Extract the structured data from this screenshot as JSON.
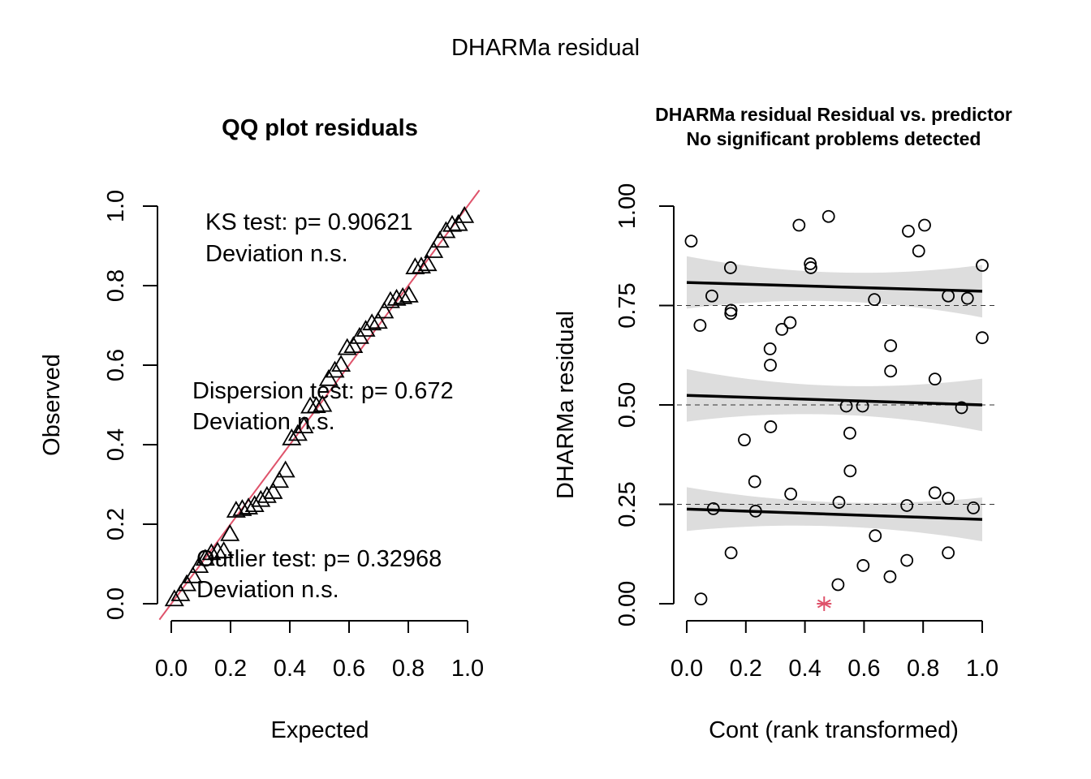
{
  "figure": {
    "main_title": "DHARMa residual"
  },
  "colors": {
    "ink": "#000000",
    "reference_line": "#DF536B",
    "outlier": "#DF536B",
    "ci_band": "#DDDDDD"
  },
  "chart_data": [
    {
      "type": "scatter",
      "title": "QQ plot residuals",
      "xlabel": "Expected",
      "ylabel": "Observed",
      "xlim": [
        0,
        1
      ],
      "ylim": [
        0,
        1
      ],
      "x_ticks": [
        "0.0",
        "0.2",
        "0.4",
        "0.6",
        "0.8",
        "1.0"
      ],
      "y_ticks": [
        "0.0",
        "0.2",
        "0.4",
        "0.6",
        "0.8",
        "1.0"
      ],
      "marker": "triangle",
      "reference_line": {
        "slope": 1,
        "intercept": 0,
        "color": "#DF536B"
      },
      "annotations": [
        {
          "id": "ks",
          "line1": "KS test: p= 0.90621",
          "line2": "Deviation  n.s."
        },
        {
          "id": "dispersion",
          "line1": "Dispersion test: p= 0.672",
          "line2": "Deviation  n.s."
        },
        {
          "id": "outlier",
          "line1": "Outlier test: p= 0.32968",
          "line2": "Deviation  n.s."
        }
      ],
      "observed": [
        0.01,
        0.023,
        0.048,
        0.068,
        0.094,
        0.112,
        0.126,
        0.13,
        0.131,
        0.174,
        0.233,
        0.237,
        0.241,
        0.247,
        0.26,
        0.27,
        0.28,
        0.308,
        0.334,
        0.415,
        0.426,
        0.445,
        0.495,
        0.496,
        0.499,
        0.564,
        0.585,
        0.6,
        0.642,
        0.647,
        0.67,
        0.688,
        0.704,
        0.708,
        0.734,
        0.76,
        0.766,
        0.77,
        0.774,
        0.845,
        0.847,
        0.853,
        0.886,
        0.912,
        0.936,
        0.952,
        0.954,
        0.974
      ]
    },
    {
      "type": "scatter",
      "title_line1": "DHARMa residual Residual vs. predictor",
      "title_line2": "No significant problems detected",
      "xlabel": "Cont (rank transformed)",
      "ylabel": "DHARMa residual",
      "xlim": [
        0,
        1
      ],
      "ylim": [
        0,
        1
      ],
      "x_ticks": [
        "0.0",
        "0.2",
        "0.4",
        "0.6",
        "0.8",
        "1.0"
      ],
      "y_ticks": [
        "0.00",
        "0.25",
        "0.50",
        "0.75",
        "1.00"
      ],
      "hlines": [
        0.25,
        0.5,
        0.75
      ],
      "quantile_fits": [
        {
          "quantile": 0.25,
          "y_start": 0.238,
          "y_end": 0.212,
          "ci_width": 0.055
        },
        {
          "quantile": 0.5,
          "y_start": 0.524,
          "y_end": 0.5,
          "ci_width": 0.066
        },
        {
          "quantile": 0.75,
          "y_start": 0.808,
          "y_end": 0.786,
          "ci_width": 0.066
        }
      ],
      "points": [
        [
          0.015,
          0.912
        ],
        [
          0.045,
          0.7
        ],
        [
          0.048,
          0.012
        ],
        [
          0.085,
          0.774
        ],
        [
          0.09,
          0.239
        ],
        [
          0.148,
          0.845
        ],
        [
          0.149,
          0.73
        ],
        [
          0.15,
          0.738
        ],
        [
          0.15,
          0.128
        ],
        [
          0.195,
          0.412
        ],
        [
          0.23,
          0.307
        ],
        [
          0.233,
          0.233
        ],
        [
          0.282,
          0.641
        ],
        [
          0.283,
          0.6
        ],
        [
          0.284,
          0.445
        ],
        [
          0.322,
          0.69
        ],
        [
          0.35,
          0.707
        ],
        [
          0.352,
          0.276
        ],
        [
          0.38,
          0.952
        ],
        [
          0.418,
          0.855
        ],
        [
          0.42,
          0.845
        ],
        [
          0.48,
          0.974
        ],
        [
          0.512,
          0.048
        ],
        [
          0.515,
          0.255
        ],
        [
          0.54,
          0.497
        ],
        [
          0.552,
          0.429
        ],
        [
          0.553,
          0.334
        ],
        [
          0.595,
          0.497
        ],
        [
          0.597,
          0.096
        ],
        [
          0.635,
          0.765
        ],
        [
          0.638,
          0.171
        ],
        [
          0.688,
          0.068
        ],
        [
          0.69,
          0.585
        ],
        [
          0.69,
          0.649
        ],
        [
          0.745,
          0.247
        ],
        [
          0.745,
          0.109
        ],
        [
          0.75,
          0.937
        ],
        [
          0.785,
          0.887
        ],
        [
          0.805,
          0.952
        ],
        [
          0.84,
          0.565
        ],
        [
          0.84,
          0.279
        ],
        [
          0.885,
          0.774
        ],
        [
          0.885,
          0.265
        ],
        [
          0.885,
          0.128
        ],
        [
          0.93,
          0.493
        ],
        [
          0.95,
          0.768
        ],
        [
          0.97,
          0.241
        ],
        [
          1.0,
          0.851
        ],
        [
          1.0,
          0.669
        ]
      ],
      "outliers": [
        [
          0.465,
          0.0
        ]
      ]
    }
  ]
}
